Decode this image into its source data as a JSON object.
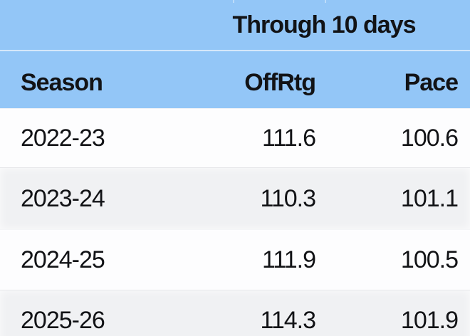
{
  "chart_data": {
    "type": "table",
    "title": "Through 10 days",
    "columns": [
      "Season",
      "OffRtg",
      "Pace"
    ],
    "rows": [
      [
        "2022-23",
        "111.6",
        "100.6"
      ],
      [
        "2023-24",
        "110.3",
        "101.1"
      ],
      [
        "2024-25",
        "111.9",
        "100.5"
      ],
      [
        "2025-26",
        "114.3",
        "101.9"
      ]
    ],
    "layout_hints": {
      "group_header_spans": [
        "OffRtg",
        "Pace"
      ],
      "season_column_align": "left",
      "numeric_columns_align": "right",
      "striped": true
    }
  },
  "colors": {
    "header_bg": "#93C6F7",
    "header_divider": "#D6E8FB",
    "row_bg": "#FDFDFE",
    "row_alt_bg": "#F0F1F3",
    "text_dark": "#121316"
  }
}
